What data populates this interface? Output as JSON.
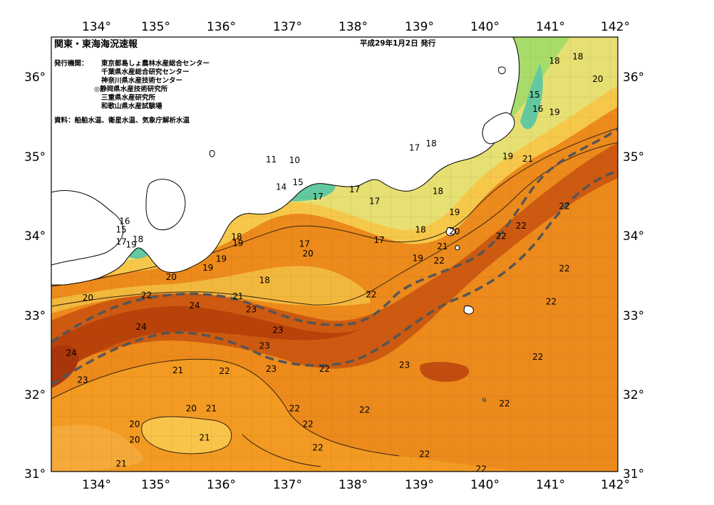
{
  "map": {
    "title": "関東・東海海況速報",
    "issue_date": "平成29年1月2日 発行",
    "issuers_label": "発行機関：",
    "issuers": [
      "東京都島しょ農林水産総合センター",
      "千葉県水産総合研究センター",
      "神奈川県水産技術センター",
      "◎静岡県水産技術研究所",
      "三重県水産研究所",
      "和歌山県水産試験場"
    ],
    "source_note": "資料：船舶水温、衛星水温、気象庁解析水温",
    "lon_ticks": [
      "134°",
      "135°",
      "136°",
      "137°",
      "138°",
      "139°",
      "140°",
      "141°",
      "142°"
    ],
    "lat_ticks": [
      "36°",
      "35°",
      "34°",
      "33°",
      "32°",
      "31°"
    ],
    "lon_range": [
      133.5,
      142
    ],
    "lat_range": [
      31,
      36.5
    ],
    "colors": {
      "warmest": "#b8420a",
      "warm": "#e0700f",
      "mid": "#f29a22",
      "cool": "#f6c84a",
      "cooler": "#dfe37a",
      "green": "#a8dc6a",
      "cold": "#62c9a0",
      "coldest": "#3a8fe0",
      "land": "#ffffff",
      "kuroshio": "#555555"
    },
    "contour_labels": [
      {
        "text": "18",
        "lon": 141.05,
        "lat": 36.2
      },
      {
        "text": "18",
        "lon": 141.4,
        "lat": 36.25
      },
      {
        "text": "20",
        "lon": 141.7,
        "lat": 35.97
      },
      {
        "text": "15",
        "lon": 140.75,
        "lat": 35.77
      },
      {
        "text": "16",
        "lon": 140.8,
        "lat": 35.59
      },
      {
        "text": "19",
        "lon": 141.05,
        "lat": 35.55
      },
      {
        "text": "17",
        "lon": 138.95,
        "lat": 35.1
      },
      {
        "text": "18",
        "lon": 139.2,
        "lat": 35.15
      },
      {
        "text": "19",
        "lon": 140.35,
        "lat": 34.99
      },
      {
        "text": "21",
        "lon": 140.65,
        "lat": 34.96
      },
      {
        "text": "18",
        "lon": 139.3,
        "lat": 34.55
      },
      {
        "text": "17",
        "lon": 138.35,
        "lat": 34.42
      },
      {
        "text": "19",
        "lon": 139.55,
        "lat": 34.28
      },
      {
        "text": "22",
        "lon": 141.2,
        "lat": 34.36
      },
      {
        "text": "22",
        "lon": 140.55,
        "lat": 34.11
      },
      {
        "text": "22",
        "lon": 140.25,
        "lat": 33.98
      },
      {
        "text": "20",
        "lon": 139.55,
        "lat": 34.04
      },
      {
        "text": "21",
        "lon": 139.37,
        "lat": 33.85
      },
      {
        "text": "18",
        "lon": 139.04,
        "lat": 34.06
      },
      {
        "text": "17",
        "lon": 138.42,
        "lat": 33.93
      },
      {
        "text": "19",
        "lon": 139.0,
        "lat": 33.7
      },
      {
        "text": "22",
        "lon": 139.32,
        "lat": 33.67
      },
      {
        "text": "22",
        "lon": 141.2,
        "lat": 33.57
      },
      {
        "text": "22",
        "lon": 141.0,
        "lat": 33.15
      },
      {
        "text": "22",
        "lon": 140.8,
        "lat": 32.45
      },
      {
        "text": "22",
        "lon": 140.3,
        "lat": 31.86
      },
      {
        "text": "22",
        "lon": 139.1,
        "lat": 31.22
      },
      {
        "text": "22",
        "lon": 139.95,
        "lat": 31.03
      },
      {
        "text": "11",
        "lon": 136.8,
        "lat": 34.95
      },
      {
        "text": "10",
        "lon": 137.15,
        "lat": 34.94
      },
      {
        "text": "14",
        "lon": 136.95,
        "lat": 34.6
      },
      {
        "text": "15",
        "lon": 137.2,
        "lat": 34.66
      },
      {
        "text": "17",
        "lon": 137.5,
        "lat": 34.48
      },
      {
        "text": "17",
        "lon": 138.05,
        "lat": 34.57
      },
      {
        "text": "17",
        "lon": 137.3,
        "lat": 33.88
      },
      {
        "text": "18",
        "lon": 136.28,
        "lat": 33.97
      },
      {
        "text": "19",
        "lon": 136.3,
        "lat": 33.89
      },
      {
        "text": "20",
        "lon": 137.35,
        "lat": 33.76
      },
      {
        "text": "18",
        "lon": 136.7,
        "lat": 33.42
      },
      {
        "text": "19",
        "lon": 135.85,
        "lat": 33.58
      },
      {
        "text": "20",
        "lon": 135.3,
        "lat": 33.46
      },
      {
        "text": "21",
        "lon": 136.3,
        "lat": 33.22
      },
      {
        "text": "22",
        "lon": 138.3,
        "lat": 33.24
      },
      {
        "text": "23",
        "lon": 136.5,
        "lat": 33.05
      },
      {
        "text": "23",
        "lon": 136.9,
        "lat": 32.79
      },
      {
        "text": "24",
        "lon": 135.65,
        "lat": 33.1
      },
      {
        "text": "22",
        "lon": 134.93,
        "lat": 33.23
      },
      {
        "text": "20",
        "lon": 134.05,
        "lat": 33.2
      },
      {
        "text": "24",
        "lon": 134.85,
        "lat": 32.83
      },
      {
        "text": "24",
        "lon": 133.8,
        "lat": 32.5
      },
      {
        "text": "23",
        "lon": 133.97,
        "lat": 32.16
      },
      {
        "text": "23",
        "lon": 136.7,
        "lat": 32.59
      },
      {
        "text": "23",
        "lon": 136.8,
        "lat": 32.3
      },
      {
        "text": "22",
        "lon": 137.6,
        "lat": 32.3
      },
      {
        "text": "23",
        "lon": 138.8,
        "lat": 32.35
      },
      {
        "text": "21",
        "lon": 135.4,
        "lat": 32.28
      },
      {
        "text": "22",
        "lon": 136.1,
        "lat": 32.27
      },
      {
        "text": "20",
        "lon": 135.6,
        "lat": 31.8
      },
      {
        "text": "21",
        "lon": 135.9,
        "lat": 31.8
      },
      {
        "text": "22",
        "lon": 137.15,
        "lat": 31.8
      },
      {
        "text": "22",
        "lon": 138.2,
        "lat": 31.78
      },
      {
        "text": "20",
        "lon": 134.75,
        "lat": 31.6
      },
      {
        "text": "22",
        "lon": 137.35,
        "lat": 31.6
      },
      {
        "text": "21",
        "lon": 135.8,
        "lat": 31.43
      },
      {
        "text": "20",
        "lon": 134.75,
        "lat": 31.4
      },
      {
        "text": "22",
        "lon": 137.5,
        "lat": 31.3
      },
      {
        "text": "21",
        "lon": 134.55,
        "lat": 31.1
      },
      {
        "text": "16",
        "lon": 134.6,
        "lat": 34.17
      },
      {
        "text": "15",
        "lon": 134.55,
        "lat": 34.06
      },
      {
        "text": "17",
        "lon": 134.55,
        "lat": 33.91
      },
      {
        "text": "18",
        "lon": 134.8,
        "lat": 33.94
      },
      {
        "text": "19",
        "lon": 134.7,
        "lat": 33.87
      },
      {
        "text": "19",
        "lon": 136.05,
        "lat": 33.69
      }
    ]
  }
}
